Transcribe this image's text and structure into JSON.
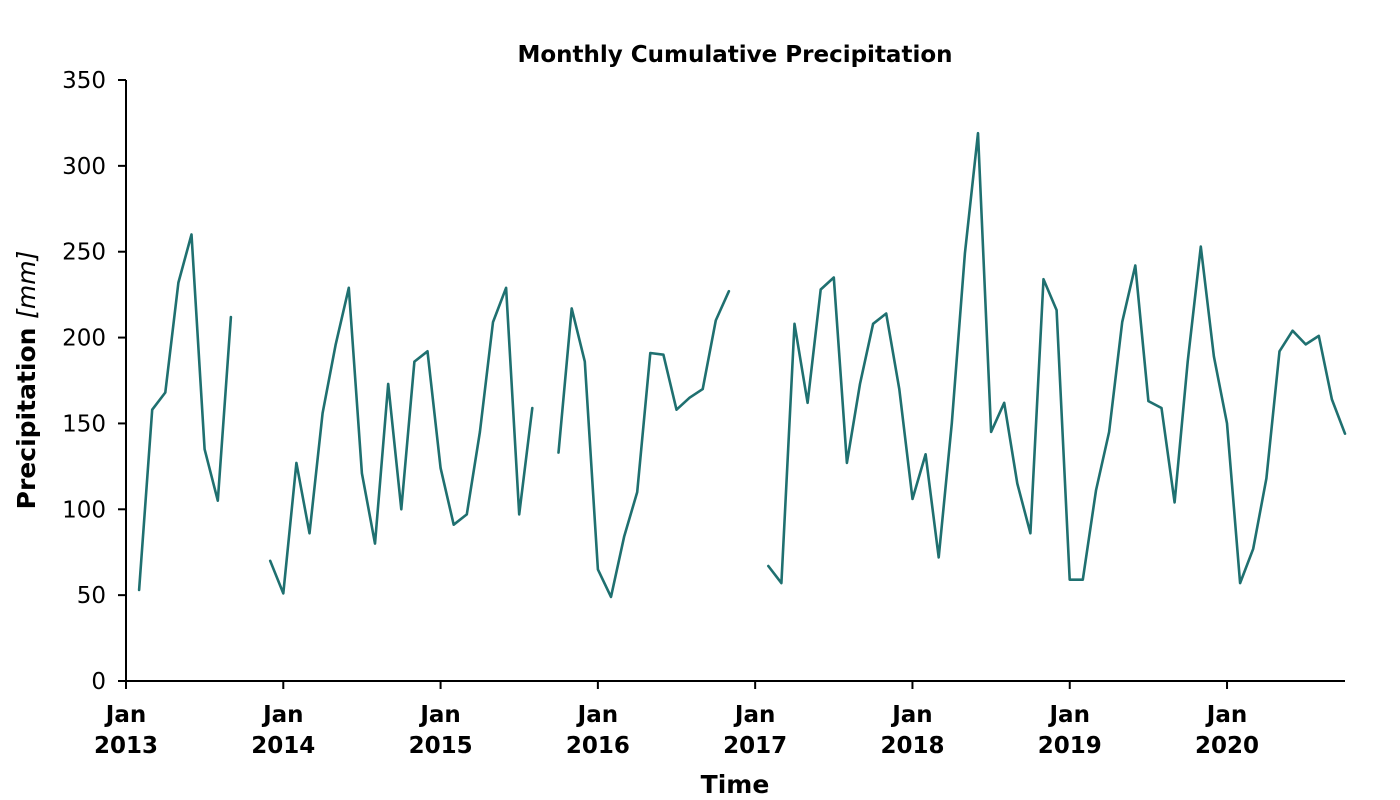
{
  "chart_data": {
    "type": "line",
    "title": "Monthly Cumulative Precipitation",
    "xlabel": "Time",
    "ylabel": "Precipitation [mm]",
    "ylabel_prefix": "Precipitation ",
    "ylabel_unit": "[mm]",
    "ylim": [
      0,
      350
    ],
    "y_ticks": [
      0,
      50,
      100,
      150,
      200,
      250,
      300,
      350
    ],
    "xlim": [
      "2013-01",
      "2020-10"
    ],
    "x_ticks": [
      {
        "date": "2013-01",
        "line1": "Jan",
        "line2": "2013"
      },
      {
        "date": "2014-01",
        "line1": "Jan",
        "line2": "2014"
      },
      {
        "date": "2015-01",
        "line1": "Jan",
        "line2": "2015"
      },
      {
        "date": "2016-01",
        "line1": "Jan",
        "line2": "2016"
      },
      {
        "date": "2017-01",
        "line1": "Jan",
        "line2": "2017"
      },
      {
        "date": "2018-01",
        "line1": "Jan",
        "line2": "2018"
      },
      {
        "date": "2019-01",
        "line1": "Jan",
        "line2": "2019"
      },
      {
        "date": "2020-01",
        "line1": "Jan",
        "line2": "2020"
      }
    ],
    "grid": false,
    "color": "#1f7070",
    "series": [
      {
        "x": [
          "2013-02",
          "2013-03",
          "2013-04",
          "2013-05",
          "2013-06",
          "2013-07",
          "2013-08",
          "2013-09",
          "2013-10",
          "2013-11",
          "2013-12",
          "2014-01",
          "2014-02",
          "2014-03",
          "2014-04",
          "2014-05",
          "2014-06",
          "2014-07",
          "2014-08",
          "2014-09",
          "2014-10",
          "2014-11",
          "2014-12",
          "2015-01",
          "2015-02",
          "2015-03",
          "2015-04",
          "2015-05",
          "2015-06",
          "2015-07",
          "2015-08",
          "2015-09",
          "2015-10",
          "2015-11",
          "2015-12",
          "2016-01",
          "2016-02",
          "2016-03",
          "2016-04",
          "2016-05",
          "2016-06",
          "2016-07",
          "2016-08",
          "2016-09",
          "2016-10",
          "2016-11",
          "2016-12",
          "2017-01",
          "2017-02",
          "2017-03",
          "2017-04",
          "2017-05",
          "2017-06",
          "2017-07",
          "2017-08",
          "2017-09",
          "2017-10",
          "2017-11",
          "2017-12",
          "2018-01",
          "2018-02",
          "2018-03",
          "2018-04",
          "2018-05",
          "2018-06",
          "2018-07",
          "2018-08",
          "2018-09",
          "2018-10",
          "2018-11",
          "2018-12",
          "2019-01",
          "2019-02",
          "2019-03",
          "2019-04",
          "2019-05",
          "2019-06",
          "2019-07",
          "2019-08",
          "2019-09",
          "2019-10",
          "2019-11",
          "2019-12",
          "2020-01",
          "2020-02",
          "2020-03",
          "2020-04",
          "2020-05",
          "2020-06",
          "2020-07",
          "2020-08",
          "2020-09",
          "2020-10"
        ],
        "values": [
          53,
          158,
          168,
          232,
          260,
          135,
          105,
          212,
          null,
          null,
          70,
          51,
          127,
          86,
          156,
          196,
          229,
          121,
          80,
          173,
          100,
          186,
          192,
          124,
          91,
          97,
          145,
          209,
          229,
          97,
          159,
          null,
          133,
          217,
          186,
          65,
          49,
          84,
          110,
          191,
          190,
          158,
          165,
          170,
          210,
          227,
          null,
          null,
          67,
          57,
          208,
          162,
          228,
          235,
          127,
          173,
          208,
          214,
          170,
          106,
          132,
          72,
          150,
          249,
          319,
          145,
          162,
          115,
          86,
          234,
          216,
          59,
          59,
          111,
          145,
          209,
          242,
          163,
          159,
          104,
          186,
          253,
          189,
          150,
          57,
          77,
          118,
          192,
          204,
          196,
          201,
          164,
          144
        ]
      }
    ]
  }
}
